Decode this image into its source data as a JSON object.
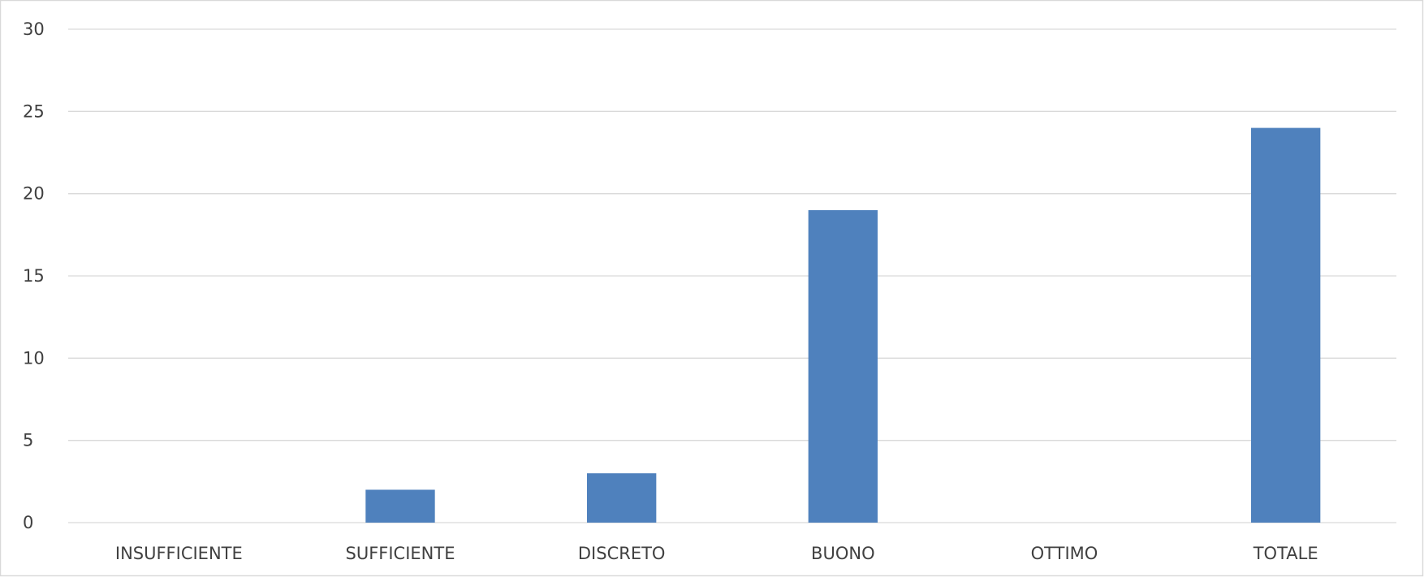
{
  "chart_data": {
    "type": "bar",
    "categories": [
      "INSUFFICIENTE",
      "SUFFICIENTE",
      "DISCRETO",
      "BUONO",
      "OTTIMO",
      "TOTALE"
    ],
    "values": [
      0,
      2,
      3,
      19,
      0,
      24
    ],
    "title": "",
    "xlabel": "",
    "ylabel": "",
    "ylim": [
      0,
      30
    ],
    "yticks": [
      "0",
      "5",
      "10",
      "15",
      "20",
      "25",
      "30"
    ],
    "grid": true,
    "legend": "none",
    "colors": {
      "bar": "#4F81BD",
      "grid": "#D9D9D9",
      "axis": "#D9D9D9",
      "text": "#404040",
      "frame": "#D9D9D9"
    }
  }
}
